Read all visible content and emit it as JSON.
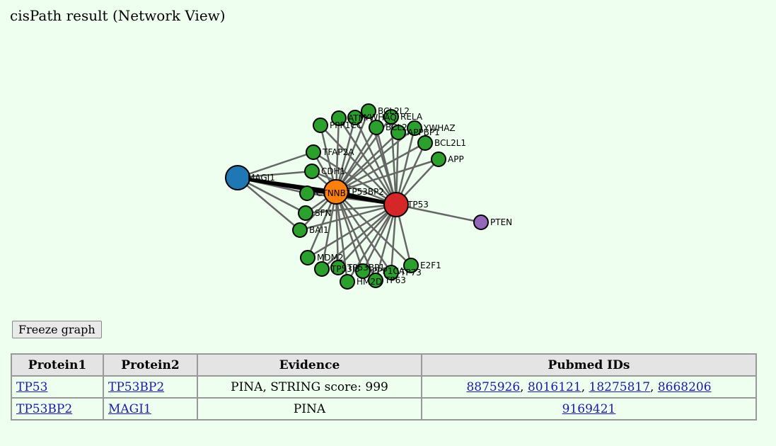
{
  "page": {
    "title": "cisPath result (Network View)"
  },
  "graph": {
    "nodes": [
      {
        "id": "MAGI1",
        "label": "MAGI1",
        "color": "#1f77b4"
      },
      {
        "id": "TP53BP2",
        "label": "TP53BP2",
        "color": "#ff7f0e"
      },
      {
        "id": "TP53",
        "label": "TP53",
        "color": "#d62728"
      },
      {
        "id": "PTEN",
        "label": "PTEN",
        "color": "#9467bd"
      },
      {
        "id": "CTNNB1",
        "label": "CTNNB1",
        "color": "#2ca02c"
      },
      {
        "id": "CDH1",
        "label": "CDH1",
        "color": "#2ca02c"
      },
      {
        "id": "TFAP2A",
        "label": "TFAP2A",
        "color": "#2ca02c"
      },
      {
        "id": "SFN",
        "label": "SFN",
        "color": "#2ca02c"
      },
      {
        "id": "BAI1",
        "label": "BAI1",
        "color": "#2ca02c"
      },
      {
        "id": "MDM2",
        "label": "MDM2",
        "color": "#2ca02c"
      },
      {
        "id": "TP53I3",
        "label": "TP53I3",
        "color": "#2ca02c"
      },
      {
        "id": "TP53BP1",
        "label": "TP53BP1",
        "color": "#2ca02c"
      },
      {
        "id": "PPP1CA",
        "label": "PPP1CA",
        "color": "#2ca02c"
      },
      {
        "id": "TP73",
        "label": "TP73",
        "color": "#2ca02c"
      },
      {
        "id": "TP63",
        "label": "TP63",
        "color": "#2ca02c"
      },
      {
        "id": "HM2D",
        "label": "HM2D",
        "color": "#2ca02c"
      },
      {
        "id": "E2F1",
        "label": "E2F1",
        "color": "#2ca02c"
      },
      {
        "id": "APP",
        "label": "APP",
        "color": "#2ca02c"
      },
      {
        "id": "BCL2L1",
        "label": "BCL2L1",
        "color": "#2ca02c"
      },
      {
        "id": "YWHAZ",
        "label": "YWHAZ",
        "color": "#2ca02c"
      },
      {
        "id": "APPBP1",
        "label": "APPBP1",
        "color": "#2ca02c"
      },
      {
        "id": "RELA",
        "label": "RELA",
        "color": "#2ca02c"
      },
      {
        "id": "BCL2L2",
        "label": "BCL2L2",
        "color": "#2ca02c"
      },
      {
        "id": "BCL2",
        "label": "BCL2",
        "color": "#2ca02c"
      },
      {
        "id": "YWHAQ",
        "label": "YWHAQ",
        "color": "#2ca02c"
      },
      {
        "id": "ATM",
        "label": "ATM",
        "color": "#2ca02c"
      },
      {
        "id": "PPP1CC",
        "label": "PPP1CC",
        "color": "#2ca02c"
      }
    ]
  },
  "controls": {
    "freeze_label": "Freeze graph"
  },
  "table": {
    "headers": [
      "Protein1",
      "Protein2",
      "Evidence",
      "Pubmed IDs"
    ],
    "rows": [
      {
        "protein1": "TP53",
        "protein2": "TP53BP2",
        "evidence": "PINA, STRING score: 999",
        "pubmed": [
          "8875926",
          "8016121",
          "18275817",
          "8668206"
        ],
        "separator": ", "
      },
      {
        "protein1": "TP53BP2",
        "protein2": "MAGI1",
        "evidence": "PINA",
        "pubmed": [
          "9169421"
        ],
        "separator": ", "
      }
    ]
  }
}
